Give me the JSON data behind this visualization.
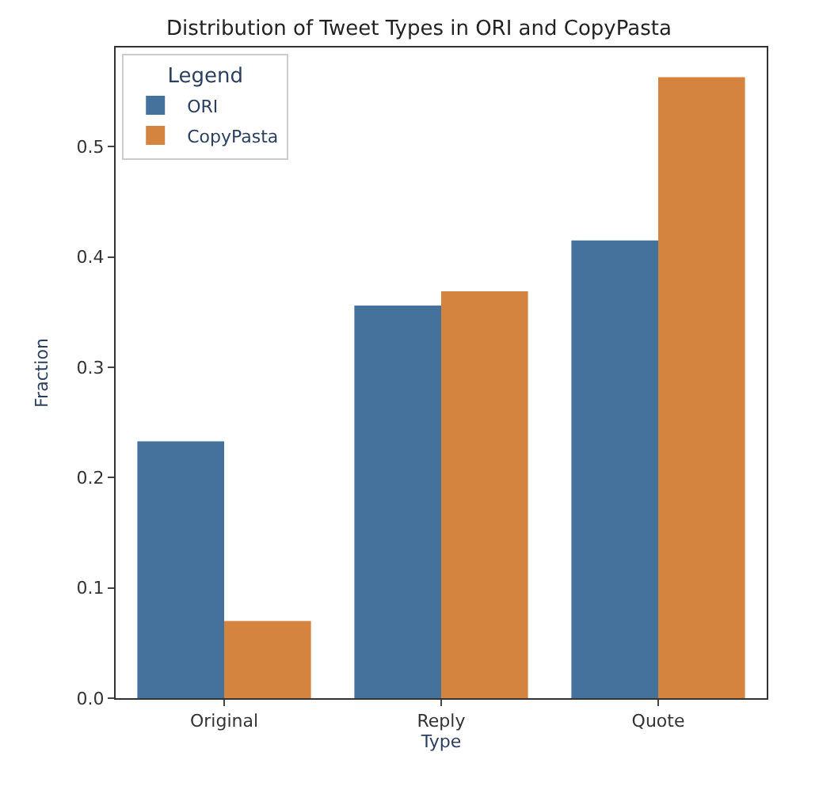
{
  "chart_data": {
    "type": "bar",
    "title": "Distribution of Tweet Types in ORI and CopyPasta",
    "xlabel": "Type",
    "ylabel": "Fraction",
    "legend_title": "Legend",
    "categories": [
      "Original",
      "Reply",
      "Quote"
    ],
    "series": [
      {
        "name": "ORI",
        "color": "#44729d",
        "values": [
          0.233,
          0.356,
          0.415
        ]
      },
      {
        "name": "CopyPasta",
        "color": "#d4843e",
        "values": [
          0.07,
          0.369,
          0.563
        ]
      }
    ],
    "ylim": [
      0,
      0.59
    ],
    "yticks": [
      {
        "value": 0,
        "label": "0.0"
      },
      0.1,
      0.2,
      0.3,
      0.4,
      0.5
    ],
    "legend": "top left"
  }
}
